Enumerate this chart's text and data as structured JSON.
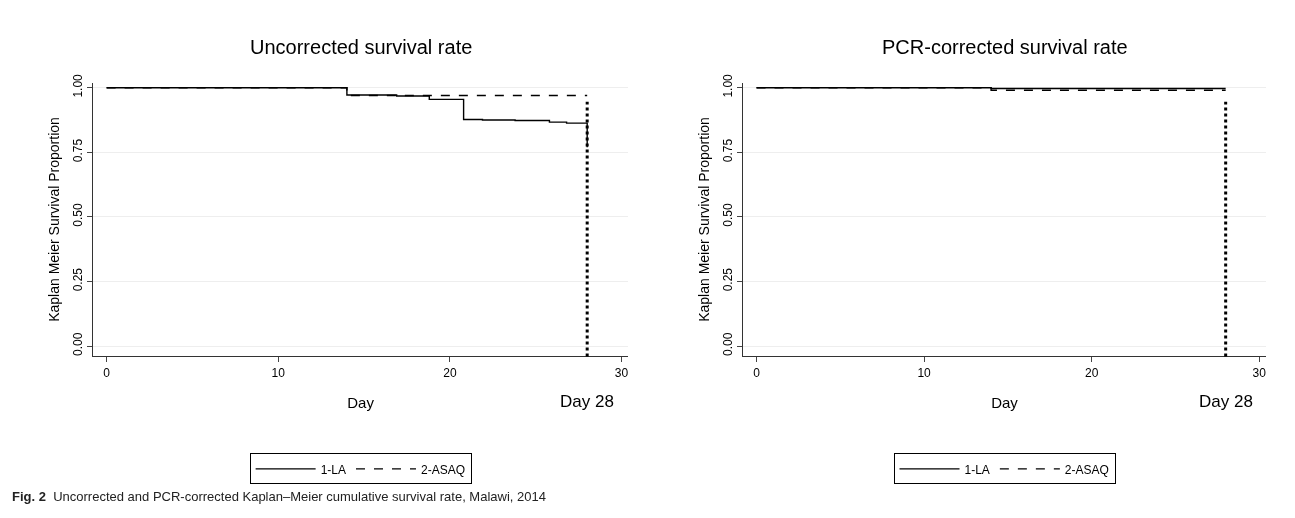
{
  "chart_data": [
    {
      "type": "step",
      "title": "Uncorrected survival rate",
      "xlabel": "Day",
      "ylabel": "Kaplan Meier Survival Proportion",
      "xlim": [
        -0.8,
        30.4
      ],
      "ylim": [
        -0.04,
        1.02
      ],
      "xticks": [
        0,
        10,
        20,
        30
      ],
      "yticks": [
        {
          "value": 0,
          "label": "0.00"
        },
        {
          "value": 0.25,
          "label": "0.25"
        },
        {
          "value": 0.5,
          "label": "0.50"
        },
        {
          "value": 0.75,
          "label": "0.75"
        },
        {
          "value": 1,
          "label": "1.00"
        }
      ],
      "grid": "y",
      "legend": "bottom",
      "series": [
        {
          "name": "1-LA",
          "color": "#000000",
          "line_style": "solid",
          "x": [
            0,
            14,
            16.9,
            18.8,
            20.8,
            21.9,
            23.8,
            25.8,
            26.8,
            28,
            28
          ],
          "values": [
            1,
            0.972,
            0.968,
            0.955,
            0.877,
            0.875,
            0.873,
            0.867,
            0.863,
            0.77,
            0.77
          ]
        },
        {
          "name": "2-ASAQ",
          "color": "#000000",
          "line_style": "dashed",
          "x": [
            0,
            14,
            28
          ],
          "values": [
            1,
            0.97,
            0.97
          ]
        }
      ],
      "ref_lines": [
        {
          "axis": "x",
          "value": 28,
          "label": "Day 28",
          "color": "#000000",
          "line_style": "dotted"
        }
      ],
      "annotations": [
        "Fig. 2 Uncorrected and PCR-corrected Kaplan–Meier cumulative survival rate, Malawi, 2014"
      ]
    },
    {
      "type": "step",
      "title": "PCR-corrected survival rate",
      "xlabel": "Day",
      "ylabel": "Kaplan Meier Survival Proportion",
      "xlim": [
        -0.8,
        30.4
      ],
      "ylim": [
        -0.04,
        1.02
      ],
      "xticks": [
        0,
        10,
        20,
        30
      ],
      "yticks": [
        {
          "value": 0,
          "label": "0.00"
        },
        {
          "value": 0.25,
          "label": "0.25"
        },
        {
          "value": 0.5,
          "label": "0.50"
        },
        {
          "value": 0.75,
          "label": "0.75"
        },
        {
          "value": 1,
          "label": "1.00"
        }
      ],
      "grid": "y",
      "legend": "bottom",
      "series": [
        {
          "name": "1-LA",
          "color": "#000000",
          "line_style": "solid",
          "x": [
            0,
            14,
            28
          ],
          "values": [
            1,
            0.997,
            0.997
          ]
        },
        {
          "name": "2-ASAQ",
          "color": "#000000",
          "line_style": "dashed",
          "x": [
            0,
            14,
            28
          ],
          "values": [
            1,
            0.99,
            0.99
          ]
        }
      ],
      "ref_lines": [
        {
          "axis": "x",
          "value": 28,
          "label": "Day 28",
          "color": "#000000",
          "line_style": "dotted"
        }
      ]
    }
  ]
}
